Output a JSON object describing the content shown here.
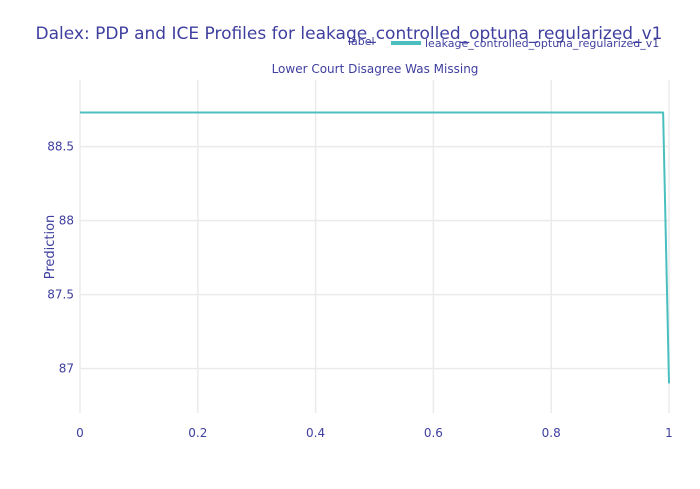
{
  "chart_data": {
    "type": "line",
    "title": "Dalex: PDP and ICE Profiles for leakage_controlled_optuna_regularized_v1",
    "subtitle": "Lower Court Disagree Was Missing",
    "xlabel": "",
    "ylabel": "Prediction",
    "xlim": [
      0,
      1
    ],
    "ylim": [
      86.7,
      88.95
    ],
    "x_ticks": [
      0,
      0.2,
      0.4,
      0.6,
      0.8,
      1
    ],
    "x_tick_labels": [
      "0",
      "0.2",
      "0.4",
      "0.6",
      "0.8",
      "1"
    ],
    "y_ticks": [
      87,
      87.5,
      88,
      88.5
    ],
    "y_tick_labels": [
      "87",
      "87.5",
      "88",
      "88.5"
    ],
    "grid": true,
    "legend": {
      "title": "label",
      "position": "top-right",
      "entries": [
        {
          "name": "leakage_controlled_optuna_regularized_v1",
          "color": "#4bbfbf"
        }
      ]
    },
    "series": [
      {
        "name": "leakage_controlled_optuna_regularized_v1",
        "color": "#4bbfbf",
        "x": [
          0,
          0.99,
          1
        ],
        "y": [
          88.73,
          88.73,
          86.9
        ]
      }
    ]
  }
}
